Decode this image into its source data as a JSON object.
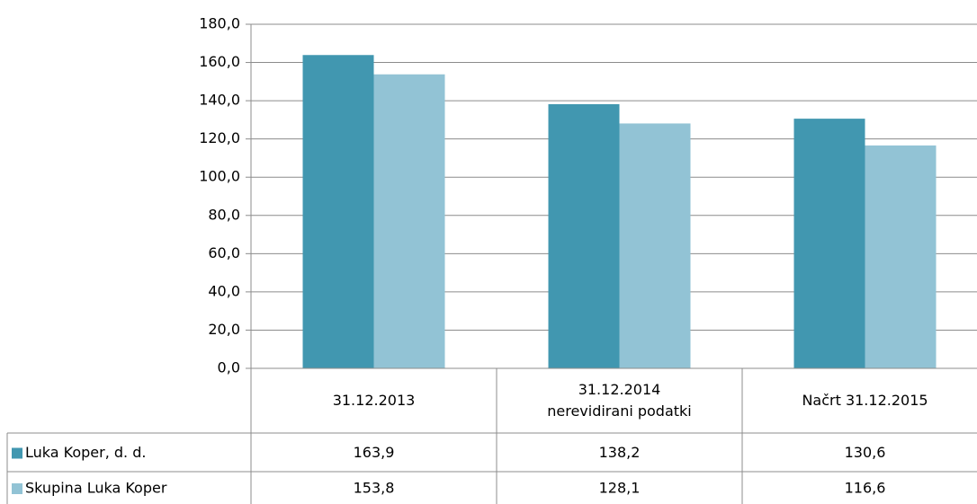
{
  "chart_data": {
    "type": "bar",
    "categories": [
      "31.12.2013",
      "31.12.2014\nnerevidirani podatki",
      "Načrt 31.12.2015"
    ],
    "series": [
      {
        "name": "Luka Koper, d. d.",
        "color": "#4197b0",
        "values": [
          163.9,
          138.2,
          130.6
        ],
        "value_labels": [
          "163,9",
          "138,2",
          "130,6"
        ]
      },
      {
        "name": "Skupina Luka Koper",
        "color": "#92c3d5",
        "values": [
          153.8,
          128.1,
          116.6
        ],
        "value_labels": [
          "153,8",
          "128,1",
          "116,6"
        ]
      }
    ],
    "ylim": [
      0,
      180
    ],
    "yticks": [
      {
        "value": 0,
        "label": "0,0"
      },
      {
        "value": 20,
        "label": "20,0"
      },
      {
        "value": 40,
        "label": "40,0"
      },
      {
        "value": 60,
        "label": "60,0"
      },
      {
        "value": 80,
        "label": "80,0"
      },
      {
        "value": 100,
        "label": "100,0"
      },
      {
        "value": 120,
        "label": "120,0"
      },
      {
        "value": 140,
        "label": "140,0"
      },
      {
        "value": 160,
        "label": "160,0"
      },
      {
        "value": 180,
        "label": "180,0"
      }
    ],
    "grid": true
  }
}
